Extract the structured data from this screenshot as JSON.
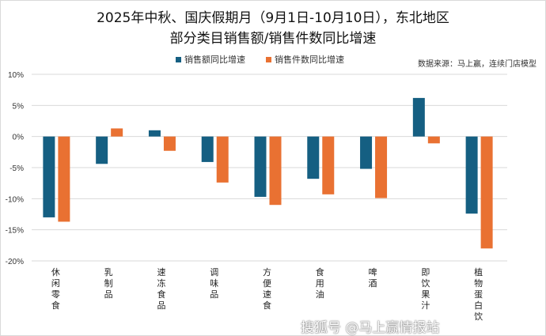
{
  "chart_data": {
    "type": "bar",
    "title": "2025年中秋、国庆假期月（9月1日-10月10日），东北地区",
    "subtitle": "部分类目销售额/销售件数同比增速",
    "source": "数据来源：马上赢，连续门店模型",
    "categories": [
      "休闲零食",
      "乳制品",
      "速冻食品",
      "调味品",
      "方便速食",
      "食用油",
      "啤酒",
      "即饮果汁",
      "植物蛋白饮"
    ],
    "series": [
      {
        "name": "销售额同比增速",
        "color": "#155f82",
        "values": [
          -13.0,
          -4.4,
          1.0,
          -4.1,
          -9.7,
          -6.8,
          -5.2,
          6.2,
          -12.4
        ]
      },
      {
        "name": "销售件数同比增速",
        "color": "#e97132",
        "values": [
          -13.7,
          1.3,
          -2.3,
          -7.4,
          -11.0,
          -9.3,
          -9.9,
          -1.1,
          -18.0
        ]
      }
    ],
    "ylim": [
      -20,
      10
    ],
    "yticks": [
      10,
      5,
      0,
      -5,
      -10,
      -15,
      -20
    ],
    "ytick_labels": [
      "10%",
      "5%",
      "0%",
      "-5%",
      "-10%",
      "-15%",
      "-20%"
    ],
    "grid": true,
    "legend": "top"
  },
  "watermark": "搜狐号 @马上赢情报站"
}
